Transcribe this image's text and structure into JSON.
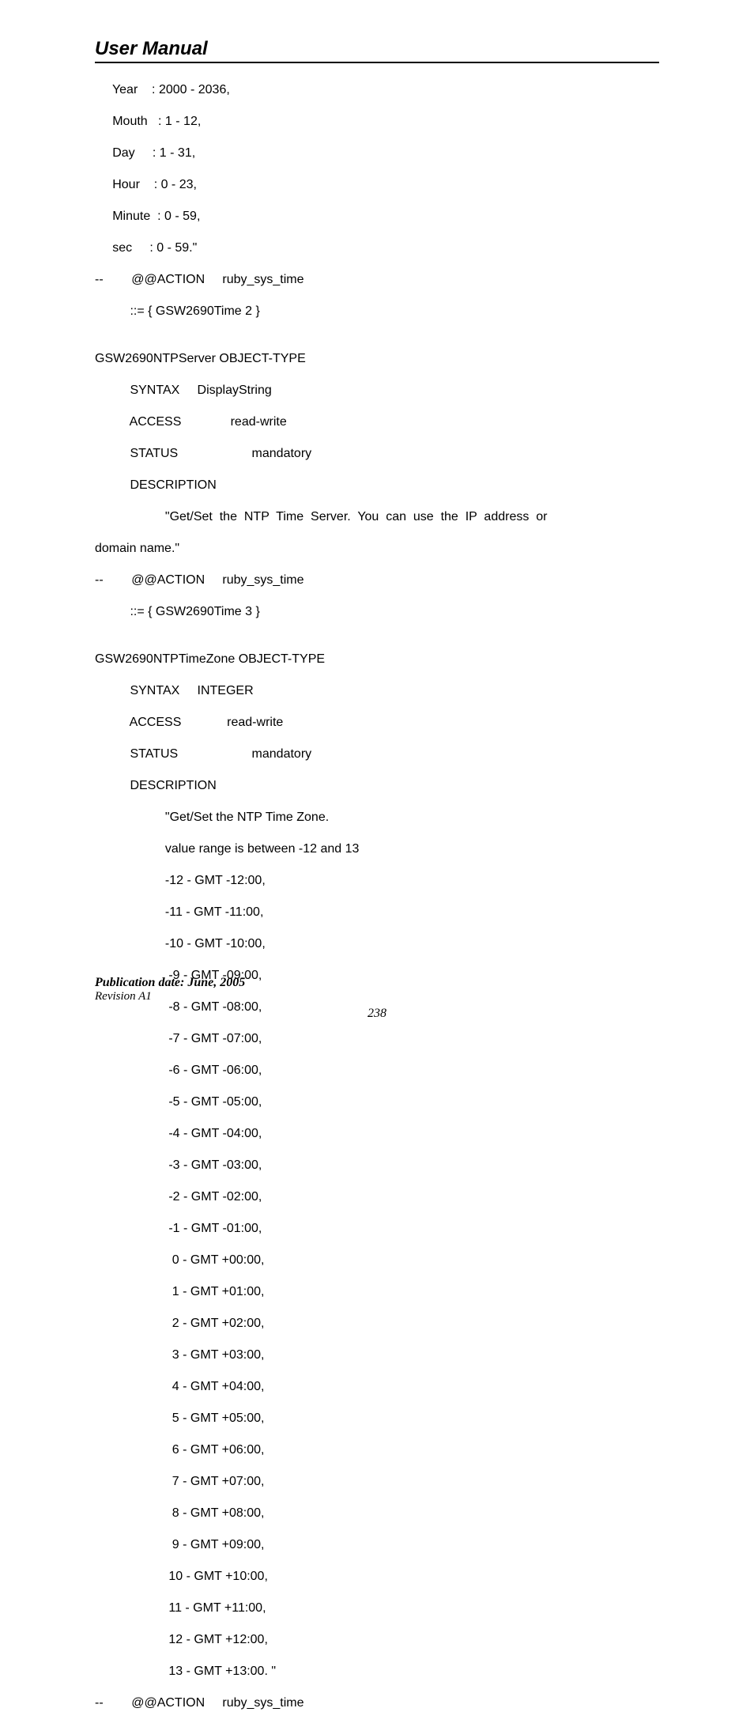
{
  "header": {
    "title": "User Manual"
  },
  "body": {
    "line1": "     Year    : 2000 - 2036,",
    "line2": "     Mouth   : 1 - 12,",
    "line3": "     Day     : 1 - 31,",
    "line4": "     Hour    : 0 - 23,",
    "line5": "     Minute  : 0 - 59,",
    "line6": "     sec     : 0 - 59.\"",
    "line7": "--        @@ACTION     ruby_sys_time",
    "line8": "          ::= { GSW2690Time 2 }",
    "line9": "",
    "line10": "GSW2690NTPServer OBJECT-TYPE",
    "line11": "          SYNTAX     DisplayString",
    "line12": "          ACCESS              read-write",
    "line13": "          STATUS                     mandatory",
    "line14": "          DESCRIPTION",
    "desc_pre": "                    \"Get/Set  the  NTP  Time  Server.  You  can  use  the  IP  address  or",
    "desc_cont": "domain name.\"",
    "line16": "--        @@ACTION     ruby_sys_time",
    "line17": "          ::= { GSW2690Time 3 }",
    "line18": "",
    "line19": "GSW2690NTPTimeZone OBJECT-TYPE",
    "line20": "          SYNTAX     INTEGER",
    "line21": "          ACCESS             read-write",
    "line22": "          STATUS                     mandatory",
    "line23": "          DESCRIPTION",
    "line24": "                    \"Get/Set the NTP Time Zone.",
    "line25": "                    value range is between -12 and 13",
    "line26": "                    -12 - GMT -12:00,",
    "line27": "                    -11 - GMT -11:00,",
    "line28": "                    -10 - GMT -10:00,",
    "line29": "                     -9 - GMT -09:00,",
    "line30": "                     -8 - GMT -08:00,",
    "line31": "                     -7 - GMT -07:00,",
    "line32": "                     -6 - GMT -06:00,",
    "line33": "                     -5 - GMT -05:00,",
    "line34": "                     -4 - GMT -04:00,",
    "line35": "                     -3 - GMT -03:00,",
    "line36": "                     -2 - GMT -02:00,",
    "line37": "                     -1 - GMT -01:00,",
    "line38": "                      0 - GMT +00:00,",
    "line39": "                      1 - GMT +01:00,",
    "line40": "                      2 - GMT +02:00,",
    "line41": "                      3 - GMT +03:00,",
    "line42": "                      4 - GMT +04:00,",
    "line43": "                      5 - GMT +05:00,",
    "line44": "                      6 - GMT +06:00,",
    "line45": "                      7 - GMT +07:00,",
    "line46": "                      8 - GMT +08:00,",
    "line47": "                      9 - GMT +09:00,",
    "line48": "                     10 - GMT +10:00,",
    "line49": "                     11 - GMT +11:00,",
    "line50": "                     12 - GMT +12:00,",
    "line51": "                     13 - GMT +13:00. \"",
    "line52": "--        @@ACTION     ruby_sys_time"
  },
  "footer": {
    "pub_date": "Publication date: June, 2005",
    "revision": "Revision A1",
    "page_num": "238"
  }
}
